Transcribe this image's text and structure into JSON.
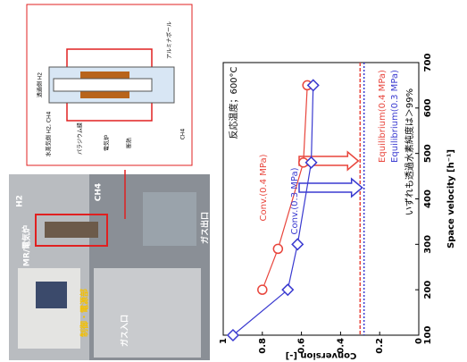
{
  "photo": {
    "labels": [
      "MR/電気炉",
      "H2",
      "CH4",
      "ガス出口",
      "制御・電源部",
      "ガス入口"
    ]
  },
  "diagram": {
    "labels": [
      "透過側 H2",
      "水蒸気側 H2, CH4",
      "パラジウム膜",
      "電気炉",
      "断熱",
      "アルミナボール",
      "CH4"
    ]
  },
  "chart_data": {
    "type": "line",
    "xlabel": "Space velocity [h⁻¹]",
    "ylabel": "Conversion [-]",
    "xlim": [
      100,
      700
    ],
    "ylim": [
      0,
      1
    ],
    "xticks": [
      100,
      200,
      300,
      400,
      500,
      600,
      700
    ],
    "yticks": [
      0,
      0.2,
      0.4,
      0.6,
      0.8,
      1
    ],
    "series": [
      {
        "name": "Conv.(0.4 MPa)",
        "color": "#e8453c",
        "marker": "circle",
        "x": [
          200,
          290,
          480,
          650
        ],
        "values": [
          0.8,
          0.72,
          0.59,
          0.57
        ]
      },
      {
        "name": "Conv.(0.3 MPa)",
        "color": "#3a3ad0",
        "marker": "diamond",
        "x": [
          100,
          200,
          300,
          480,
          650
        ],
        "values": [
          0.95,
          0.67,
          0.62,
          0.55,
          0.54
        ]
      }
    ],
    "equilibrium": [
      {
        "name": "Equilibrium(0.4 MPa)",
        "color": "#e8453c",
        "value": 0.3
      },
      {
        "name": "Equilibrium(0.3 MPa)",
        "color": "#3a3ad0",
        "value": 0.28
      }
    ],
    "annotations": [
      "反応温度；600°C",
      "いずれも透過水素純度は＞99%"
    ]
  }
}
